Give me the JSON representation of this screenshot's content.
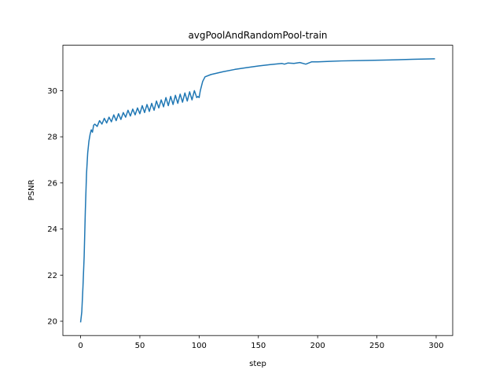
{
  "chart_data": {
    "type": "line",
    "title": "avgPoolAndRandomPool-train",
    "xlabel": "step",
    "ylabel": "PSNR",
    "x": [
      0,
      1,
      2,
      3,
      4,
      5,
      6,
      7,
      8,
      9,
      10,
      11,
      12,
      14,
      16,
      18,
      20,
      22,
      24,
      26,
      28,
      30,
      32,
      34,
      36,
      38,
      40,
      42,
      44,
      46,
      48,
      50,
      52,
      54,
      56,
      58,
      60,
      62,
      64,
      66,
      68,
      70,
      72,
      74,
      76,
      78,
      80,
      82,
      84,
      86,
      88,
      90,
      92,
      94,
      96,
      98,
      99,
      100,
      101,
      103,
      105,
      110,
      120,
      130,
      140,
      150,
      160,
      170,
      172,
      175,
      180,
      185,
      190,
      195,
      200,
      210,
      220,
      240,
      260,
      280,
      299
    ],
    "series": [
      {
        "name": "PSNR",
        "color": "#1f77b4",
        "values": [
          19.95,
          20.4,
          21.5,
          22.8,
          24.8,
          26.4,
          27.3,
          27.8,
          28.1,
          28.3,
          28.2,
          28.5,
          28.55,
          28.45,
          28.7,
          28.55,
          28.8,
          28.6,
          28.85,
          28.65,
          28.95,
          28.7,
          29.0,
          28.75,
          29.05,
          28.85,
          29.15,
          28.9,
          29.2,
          28.95,
          29.25,
          29.0,
          29.35,
          29.05,
          29.4,
          29.1,
          29.45,
          29.15,
          29.55,
          29.25,
          29.6,
          29.3,
          29.7,
          29.35,
          29.75,
          29.4,
          29.8,
          29.45,
          29.85,
          29.5,
          29.9,
          29.55,
          29.95,
          29.6,
          30.0,
          29.7,
          29.75,
          29.7,
          30.0,
          30.4,
          30.6,
          30.7,
          30.82,
          30.92,
          31.0,
          31.07,
          31.13,
          31.18,
          31.15,
          31.2,
          31.18,
          31.22,
          31.15,
          31.25,
          31.25,
          31.27,
          31.29,
          31.31,
          31.33,
          31.36,
          31.38
        ]
      }
    ],
    "xlim": [
      -14.95,
      313.95
    ],
    "ylim": [
      19.38,
      31.97
    ],
    "xticks": [
      0,
      50,
      100,
      150,
      200,
      250,
      300
    ],
    "yticks": [
      20,
      22,
      24,
      26,
      28,
      30
    ]
  }
}
